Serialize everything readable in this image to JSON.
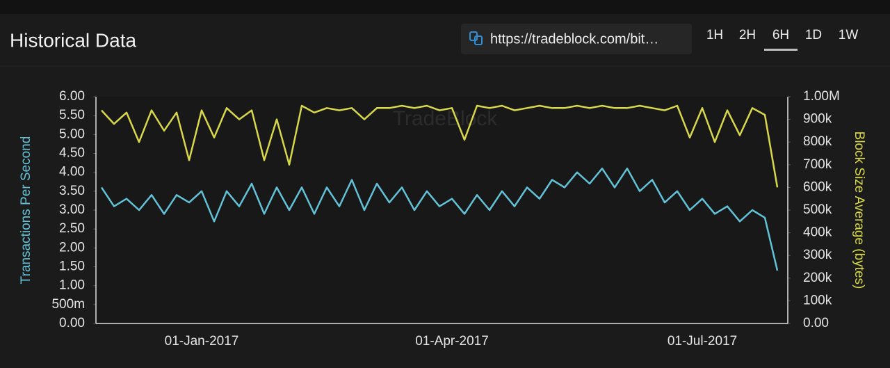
{
  "header": {
    "title": "Historical Data",
    "url": "https://tradeblock.com/bit…",
    "ranges": [
      "1H",
      "2H",
      "6H",
      "1D",
      "1W"
    ],
    "active_range": "6H"
  },
  "chart_data": {
    "type": "line",
    "watermark": "TradeBlock",
    "y_label": "Transactions Per Second",
    "y2_label": "Block Size Average (bytes)",
    "categories": [
      null,
      null,
      null,
      null,
      null,
      null,
      null,
      null,
      "01-Jan-2017",
      null,
      null,
      null,
      null,
      null,
      null,
      null,
      null,
      null,
      null,
      null,
      null,
      null,
      null,
      null,
      null,
      null,
      null,
      null,
      "01-Apr-2017",
      null,
      null,
      null,
      null,
      null,
      null,
      null,
      null,
      null,
      null,
      null,
      null,
      null,
      null,
      null,
      null,
      null,
      null,
      null,
      "01-Jul-2017",
      null,
      null,
      null,
      null,
      null,
      null
    ],
    "ylim": [
      0,
      6
    ],
    "yticks": [
      {
        "value": 0,
        "label": "0.00"
      },
      {
        "value": 0.5,
        "label": "500m"
      },
      {
        "value": 1,
        "label": "1.00"
      },
      {
        "value": 1.5,
        "label": "1.50"
      },
      {
        "value": 2,
        "label": "2.00"
      },
      {
        "value": 2.5,
        "label": "2.50"
      },
      {
        "value": 3,
        "label": "3.00"
      },
      {
        "value": 3.5,
        "label": "3.50"
      },
      {
        "value": 4,
        "label": "4.00"
      },
      {
        "value": 4.5,
        "label": "4.50"
      },
      {
        "value": 5,
        "label": "5.00"
      },
      {
        "value": 5.5,
        "label": "5.50"
      },
      {
        "value": 6,
        "label": "6.00"
      }
    ],
    "y2lim": [
      0,
      1000000
    ],
    "y2ticks": [
      {
        "value": 0,
        "label": "0.00"
      },
      {
        "value": 100000,
        "label": "100k"
      },
      {
        "value": 200000,
        "label": "200k"
      },
      {
        "value": 300000,
        "label": "300k"
      },
      {
        "value": 400000,
        "label": "400k"
      },
      {
        "value": 500000,
        "label": "500k"
      },
      {
        "value": 600000,
        "label": "600k"
      },
      {
        "value": 700000,
        "label": "700k"
      },
      {
        "value": 800000,
        "label": "800k"
      },
      {
        "value": 900000,
        "label": "900k"
      },
      {
        "value": 1000000,
        "label": "1.00M"
      }
    ],
    "series": [
      {
        "name": "Transactions Per Second",
        "color": "#62c3d8",
        "values": [
          3.6,
          3.1,
          3.3,
          3.0,
          3.4,
          2.9,
          3.4,
          3.2,
          3.5,
          2.7,
          3.5,
          3.1,
          3.7,
          2.9,
          3.6,
          3.0,
          3.6,
          2.9,
          3.6,
          3.1,
          3.8,
          3.0,
          3.7,
          3.2,
          3.6,
          3.0,
          3.5,
          3.1,
          3.3,
          2.9,
          3.4,
          3.0,
          3.5,
          3.1,
          3.6,
          3.3,
          3.8,
          3.6,
          4.0,
          3.7,
          4.1,
          3.6,
          4.1,
          3.5,
          3.8,
          3.2,
          3.5,
          3.0,
          3.3,
          2.9,
          3.1,
          2.7,
          3.0,
          2.8,
          1.4
        ]
      },
      {
        "name": "Block Size Average (bytes)",
        "color": "#d8d84a",
        "axis": "y2",
        "values": [
          940000,
          880000,
          930000,
          800000,
          940000,
          850000,
          930000,
          720000,
          940000,
          820000,
          950000,
          900000,
          940000,
          720000,
          900000,
          700000,
          960000,
          930000,
          950000,
          940000,
          950000,
          900000,
          950000,
          950000,
          960000,
          950000,
          960000,
          940000,
          950000,
          810000,
          960000,
          950000,
          960000,
          940000,
          950000,
          960000,
          950000,
          950000,
          960000,
          950000,
          960000,
          950000,
          950000,
          960000,
          950000,
          940000,
          960000,
          820000,
          950000,
          800000,
          940000,
          830000,
          950000,
          920000,
          600000
        ]
      }
    ]
  }
}
